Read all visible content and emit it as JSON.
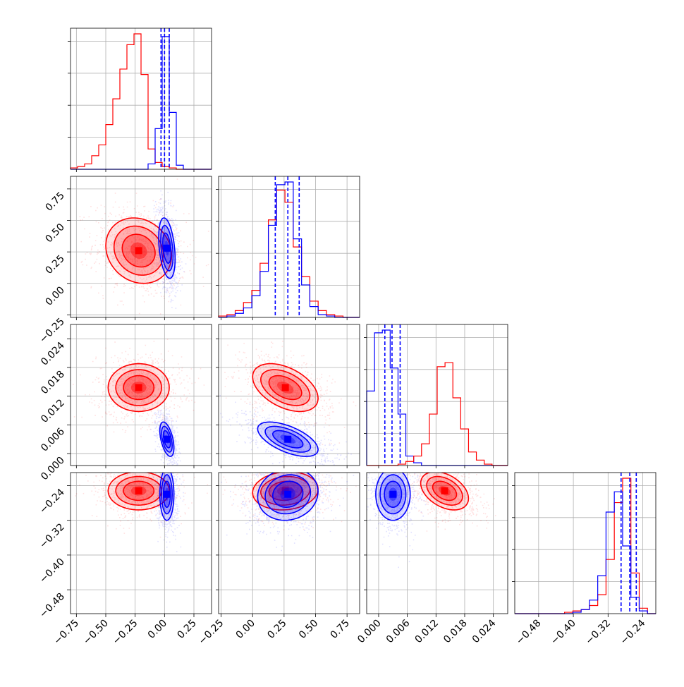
{
  "colors": {
    "red": "#ff0000",
    "blue": "#0000ff",
    "grid": "#b0b0b0"
  },
  "chart_data": {
    "type": "corner",
    "grid": true,
    "ticks": {
      "0": [
        "−0.75",
        "−0.50",
        "−0.25",
        "0.00",
        "0.25"
      ],
      "1": [
        "−0.25",
        "0.00",
        "0.25",
        "0.50",
        "0.75"
      ],
      "2": [
        "0.000",
        "0.006",
        "0.012",
        "0.018",
        "0.024"
      ],
      "3": [
        "−0.48",
        "−0.40",
        "−0.32",
        "−0.24"
      ]
    },
    "ranges": [
      [
        -0.8,
        0.4
      ],
      [
        -0.27,
        0.85
      ],
      [
        -0.0025,
        0.027
      ],
      [
        -0.535,
        -0.21
      ]
    ],
    "tick_values": {
      "0": [
        -0.75,
        -0.5,
        -0.25,
        0.0,
        0.25
      ],
      "1": [
        -0.25,
        0.0,
        0.25,
        0.5,
        0.75
      ],
      "2": [
        0.0,
        0.006,
        0.012,
        0.018,
        0.024
      ],
      "3": [
        -0.48,
        -0.4,
        -0.32,
        -0.24
      ]
    },
    "histograms": [
      {
        "series": [
          {
            "color": "red",
            "values": [
              0.01,
              0.02,
              0.04,
              0.1,
              0.18,
              0.33,
              0.52,
              0.74,
              0.92,
              1.0,
              0.7,
              0.15,
              0.05,
              0.02,
              0.01,
              0.0,
              0.0,
              0.0,
              0.0,
              0.0
            ]
          },
          {
            "color": "blue",
            "values": [
              0.0,
              0.0,
              0.0,
              0.0,
              0.0,
              0.0,
              0.0,
              0.0,
              0.0,
              0.0,
              0.0,
              0.04,
              0.3,
              0.98,
              0.42,
              0.03,
              0.0,
              0.0,
              0.0,
              0.0
            ]
          }
        ],
        "quantile_lines": [
          -0.03,
          0.0,
          0.04
        ]
      },
      {
        "series": [
          {
            "color": "red",
            "values": [
              0.01,
              0.02,
              0.05,
              0.11,
              0.2,
              0.4,
              0.72,
              0.94,
              0.85,
              0.52,
              0.3,
              0.12,
              0.05,
              0.02,
              0.01,
              0.0,
              0.0
            ]
          },
          {
            "color": "blue",
            "values": [
              0.0,
              0.01,
              0.03,
              0.07,
              0.16,
              0.34,
              0.68,
              0.98,
              1.0,
              0.58,
              0.24,
              0.08,
              0.02,
              0.01,
              0.0,
              0.0,
              0.0
            ]
          }
        ],
        "quantile_lines": [
          0.18,
          0.28,
          0.37
        ]
      },
      {
        "series": [
          {
            "color": "blue",
            "values": [
              0.55,
              0.98,
              1.0,
              0.72,
              0.38,
              0.07,
              0.02,
              0.0,
              0.0,
              0.0,
              0.0,
              0.0,
              0.0,
              0.0,
              0.0,
              0.0,
              0.0,
              0.0
            ]
          },
          {
            "color": "red",
            "values": [
              0.0,
              0.0,
              0.0,
              0.0,
              0.01,
              0.03,
              0.07,
              0.16,
              0.38,
              0.73,
              0.76,
              0.5,
              0.27,
              0.1,
              0.04,
              0.01,
              0.0,
              0.0
            ]
          }
        ],
        "quantile_lines": [
          0.0013,
          0.0028,
          0.0045
        ]
      },
      {
        "series": [
          {
            "color": "red",
            "values": [
              0.0,
              0.0,
              0.0,
              0.0,
              0.0,
              0.0,
              0.01,
              0.02,
              0.03,
              0.06,
              0.14,
              0.4,
              0.82,
              1.0,
              0.3,
              0.04,
              0.0
            ]
          },
          {
            "color": "blue",
            "values": [
              0.0,
              0.0,
              0.0,
              0.0,
              0.0,
              0.0,
              0.0,
              0.01,
              0.03,
              0.1,
              0.28,
              0.75,
              0.9,
              0.5,
              0.12,
              0.02,
              0.0
            ]
          }
        ],
        "quantile_lines": [
          -0.29,
          -0.27,
          -0.255
        ]
      }
    ],
    "joint": [
      {
        "row": 1,
        "col": 0,
        "red": {
          "mean": [
            -0.22,
            0.26
          ],
          "sd": [
            0.14,
            0.13
          ],
          "rho": -0.15
        },
        "blue": {
          "mean": [
            0.02,
            0.28
          ],
          "sd": [
            0.035,
            0.12
          ],
          "rho": -0.35
        }
      },
      {
        "row": 2,
        "col": 0,
        "red": {
          "mean": [
            -0.22,
            0.0138
          ],
          "sd": [
            0.13,
            0.0025
          ],
          "rho": 0.0
        },
        "blue": {
          "mean": [
            0.02,
            0.003
          ],
          "sd": [
            0.03,
            0.0018
          ],
          "rho": -0.5
        }
      },
      {
        "row": 2,
        "col": 1,
        "red": {
          "mean": [
            0.26,
            0.0138
          ],
          "sd": [
            0.13,
            0.0025
          ],
          "rho": -0.45
        },
        "blue": {
          "mean": [
            0.28,
            0.003
          ],
          "sd": [
            0.12,
            0.0018
          ],
          "rho": -0.6
        }
      },
      {
        "row": 3,
        "col": 0,
        "red": {
          "mean": [
            -0.22,
            -0.252
          ],
          "sd": [
            0.13,
            0.022
          ],
          "rho": 0.0
        },
        "blue": {
          "mean": [
            0.02,
            -0.26
          ],
          "sd": [
            0.03,
            0.03
          ],
          "rho": 0.0
        }
      },
      {
        "row": 3,
        "col": 1,
        "red": {
          "mean": [
            0.26,
            -0.252
          ],
          "sd": [
            0.13,
            0.022
          ],
          "rho": 0.1
        },
        "blue": {
          "mean": [
            0.28,
            -0.26
          ],
          "sd": [
            0.12,
            0.03
          ],
          "rho": 0.1
        }
      },
      {
        "row": 3,
        "col": 2,
        "red": {
          "mean": [
            0.0138,
            -0.252
          ],
          "sd": [
            0.0025,
            0.022
          ],
          "rho": -0.4
        },
        "blue": {
          "mean": [
            0.003,
            -0.26
          ],
          "sd": [
            0.0018,
            0.03
          ],
          "rho": 0.0
        }
      }
    ]
  }
}
